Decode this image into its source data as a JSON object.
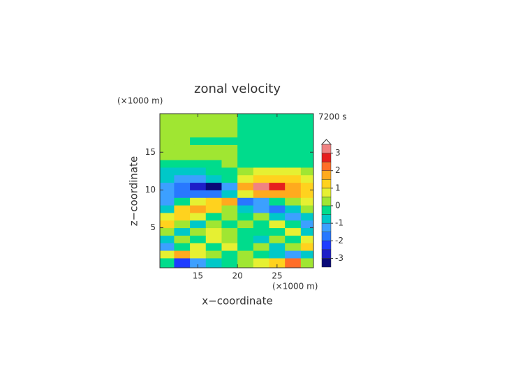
{
  "chart_data": {
    "type": "contour",
    "title": "zonal velocity",
    "x_label": "x−coordinate",
    "y_label": "z−coordinate",
    "x_unit": "(×1000 m)",
    "y_unit": "(×1000 m)",
    "time_label": "7200 s",
    "x": [
      11,
      13,
      15,
      17,
      19,
      21,
      23,
      25,
      27,
      29
    ],
    "y": [
      0.5,
      1.5,
      2.5,
      3.5,
      4.5,
      5.5,
      6.5,
      7.5,
      8.5,
      9.5,
      10.5,
      11.5,
      12.5,
      13.5,
      14.5,
      15.5,
      16.5,
      17.5,
      18.5,
      19.5
    ],
    "z": [
      [
        -0.4,
        -2.2,
        -1.2,
        -0.6,
        -0.3,
        0.3,
        0.6,
        1.4,
        2.4,
        0.4
      ],
      [
        0.8,
        1.6,
        0.6,
        0.4,
        -0.3,
        0.3,
        -0.4,
        -0.6,
        -1.4,
        -0.8
      ],
      [
        -1.2,
        -0.4,
        0.6,
        -0.3,
        0.5,
        -0.5,
        0.3,
        -0.6,
        0.4,
        1.2
      ],
      [
        -0.8,
        0.4,
        -0.4,
        0.6,
        0.3,
        -0.3,
        -0.6,
        0.4,
        -0.4,
        0.6
      ],
      [
        0.4,
        -0.6,
        0.3,
        0.5,
        0.4,
        -0.4,
        -0.5,
        -0.3,
        0.6,
        -0.6
      ],
      [
        1.2,
        0.4,
        -0.6,
        0.4,
        -0.3,
        0.3,
        -0.4,
        0.6,
        -0.4,
        -1.4
      ],
      [
        0.8,
        1.2,
        0.6,
        -0.2,
        0.3,
        -0.3,
        0.2,
        -0.8,
        -1.4,
        -0.8
      ],
      [
        -0.6,
        1.0,
        1.6,
        1.2,
        0.4,
        -0.6,
        -1.4,
        -1.6,
        -0.8,
        0.4
      ],
      [
        -1.4,
        -0.4,
        0.6,
        1.4,
        1.8,
        -1.8,
        -1.2,
        -0.3,
        0.4,
        0.8
      ],
      [
        -1.2,
        -1.6,
        -2.0,
        -1.8,
        -0.6,
        0.8,
        1.8,
        1.9,
        1.6,
        1.2
      ],
      [
        -1.2,
        -1.8,
        -2.8,
        -3.2,
        -1.5,
        1.8,
        3.2,
        2.6,
        1.8,
        1.2
      ],
      [
        -0.8,
        -1.2,
        -1.3,
        -1.0,
        -0.5,
        0.6,
        1.1,
        1.3,
        1.2,
        0.8
      ],
      [
        -0.6,
        -0.7,
        -0.6,
        -0.4,
        -0.2,
        0.3,
        0.5,
        0.6,
        0.6,
        0.4
      ],
      [
        -0.3,
        -0.3,
        -0.2,
        -0.2,
        0.2,
        -0.2,
        -0.3,
        -0.3,
        -0.3,
        -0.2
      ],
      [
        0.2,
        0.3,
        0.3,
        0.3,
        0.2,
        -0.2,
        -0.3,
        -0.3,
        -0.3,
        -0.2
      ],
      [
        0.3,
        0.4,
        0.4,
        0.4,
        0.3,
        -0.3,
        -0.3,
        -0.3,
        -0.3,
        -0.3
      ],
      [
        0.2,
        0.2,
        -0.2,
        -0.3,
        -0.2,
        -0.3,
        -0.2,
        -0.2,
        -0.2,
        -0.2
      ],
      [
        0.3,
        0.3,
        0.4,
        0.3,
        0.3,
        -0.3,
        -0.3,
        -0.3,
        -0.3,
        -0.3
      ],
      [
        0.3,
        0.3,
        0.3,
        0.3,
        0.3,
        -0.2,
        -0.2,
        -0.2,
        -0.2,
        -0.2
      ],
      [
        0.3,
        0.3,
        0.3,
        0.3,
        0.3,
        -0.2,
        -0.2,
        -0.2,
        -0.2,
        -0.2
      ]
    ],
    "xlim": [
      10.2,
      29.6
    ],
    "ylim": [
      -0.3,
      20.1
    ],
    "xticks": [
      15,
      20,
      25
    ],
    "yticks": [
      5,
      10,
      15
    ],
    "levels": [
      -3.5,
      -3,
      -2.5,
      -2,
      -1.5,
      -1,
      -0.5,
      0,
      0.5,
      1,
      1.5,
      2,
      2.5,
      3,
      3.5
    ],
    "colors": [
      "#0a0a78",
      "#1e1ec8",
      "#1e3cff",
      "#2878ff",
      "#3ca0ff",
      "#00c8c8",
      "#00dc8c",
      "#a0e632",
      "#e6f032",
      "#ffd21e",
      "#ffaa1e",
      "#ff6e28",
      "#e61e1e",
      "#f08282"
    ],
    "colorbar_ticks": [
      -3,
      -2,
      -1,
      0,
      1,
      2,
      3
    ]
  }
}
